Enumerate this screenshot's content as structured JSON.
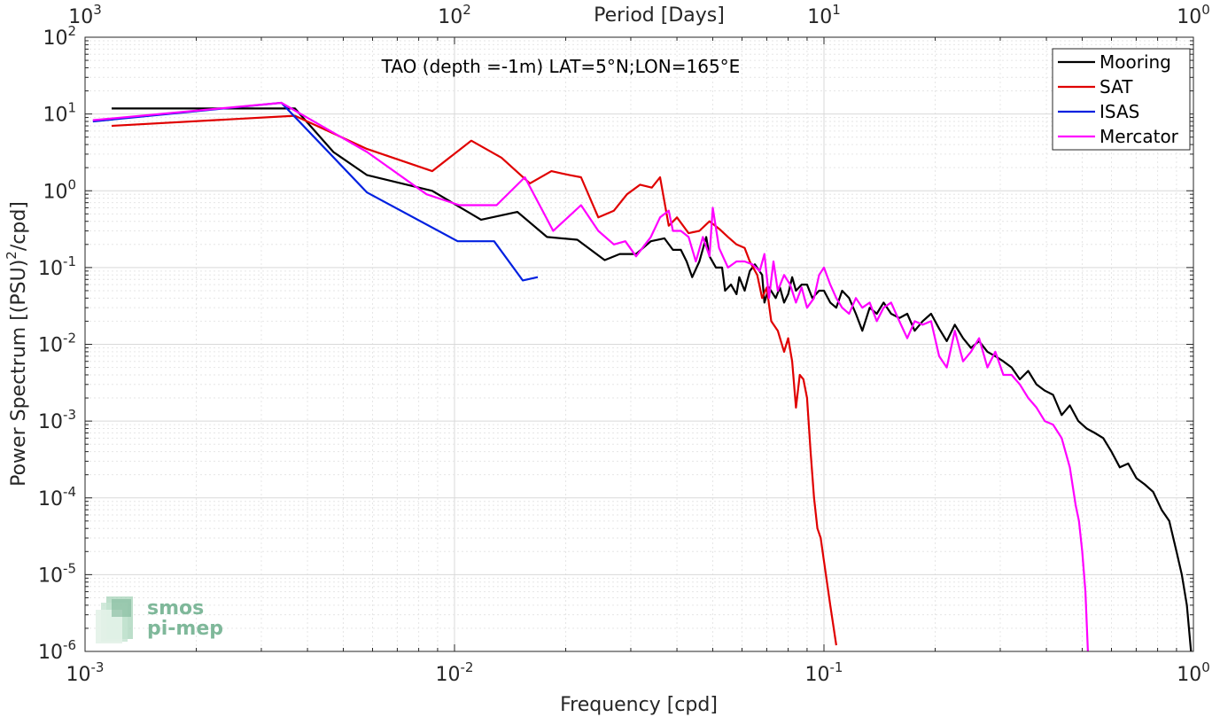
{
  "chart_data": {
    "type": "line",
    "title": "TAO (depth =-1m) LAT=5°N;LON=165°E",
    "xlabel": "Frequency [cpd]",
    "ylabel_main": "Power Spectrum [(PSU)",
    "ylabel_sup": "2",
    "ylabel_tail": "/cpd]",
    "top_xlabel": "Period [Days]",
    "xscale": "log",
    "yscale": "log",
    "xlim": [
      0.001,
      1
    ],
    "ylim": [
      1e-06,
      100
    ],
    "grid": true,
    "legend_position": "top-right",
    "x_ticks": [
      {
        "base": "10",
        "exp": "-3",
        "value": 0.001
      },
      {
        "base": "10",
        "exp": "-2",
        "value": 0.01
      },
      {
        "base": "10",
        "exp": "-1",
        "value": 0.1
      },
      {
        "base": "10",
        "exp": "0",
        "value": 1
      }
    ],
    "y_ticks": [
      {
        "base": "10",
        "exp": "-6",
        "value": 1e-06
      },
      {
        "base": "10",
        "exp": "-5",
        "value": 1e-05
      },
      {
        "base": "10",
        "exp": "-4",
        "value": 0.0001
      },
      {
        "base": "10",
        "exp": "-3",
        "value": 0.001
      },
      {
        "base": "10",
        "exp": "-2",
        "value": 0.01
      },
      {
        "base": "10",
        "exp": "-1",
        "value": 0.1
      },
      {
        "base": "10",
        "exp": "0",
        "value": 1
      },
      {
        "base": "10",
        "exp": "1",
        "value": 10
      },
      {
        "base": "10",
        "exp": "2",
        "value": 100
      }
    ],
    "top_ticks": [
      {
        "base": "10",
        "exp": "3",
        "value": 0.001
      },
      {
        "base": "10",
        "exp": "2",
        "value": 0.01
      },
      {
        "base": "10",
        "exp": "1",
        "value": 0.1
      },
      {
        "base": "10",
        "exp": "0",
        "value": 1
      }
    ],
    "series": [
      {
        "name": "Mooring",
        "color": "#000000",
        "points": [
          [
            0.00118,
            11.8
          ],
          [
            0.0037,
            11.8
          ],
          [
            0.0047,
            3.2
          ],
          [
            0.0058,
            1.6
          ],
          [
            0.0087,
            1.0
          ],
          [
            0.0118,
            0.42
          ],
          [
            0.0148,
            0.53
          ],
          [
            0.0178,
            0.25
          ],
          [
            0.0215,
            0.23
          ],
          [
            0.0255,
            0.125
          ],
          [
            0.028,
            0.15
          ],
          [
            0.031,
            0.15
          ],
          [
            0.034,
            0.22
          ],
          [
            0.037,
            0.24
          ],
          [
            0.039,
            0.17
          ],
          [
            0.041,
            0.17
          ],
          [
            0.0425,
            0.12
          ],
          [
            0.044,
            0.075
          ],
          [
            0.046,
            0.12
          ],
          [
            0.048,
            0.25
          ],
          [
            0.049,
            0.14
          ],
          [
            0.051,
            0.1
          ],
          [
            0.053,
            0.1
          ],
          [
            0.054,
            0.05
          ],
          [
            0.056,
            0.06
          ],
          [
            0.058,
            0.045
          ],
          [
            0.059,
            0.075
          ],
          [
            0.061,
            0.05
          ],
          [
            0.063,
            0.09
          ],
          [
            0.065,
            0.11
          ],
          [
            0.068,
            0.08
          ],
          [
            0.069,
            0.035
          ],
          [
            0.071,
            0.055
          ],
          [
            0.074,
            0.04
          ],
          [
            0.076,
            0.055
          ],
          [
            0.078,
            0.035
          ],
          [
            0.08,
            0.045
          ],
          [
            0.082,
            0.075
          ],
          [
            0.084,
            0.05
          ],
          [
            0.087,
            0.06
          ],
          [
            0.09,
            0.06
          ],
          [
            0.093,
            0.04
          ],
          [
            0.097,
            0.05
          ],
          [
            0.1,
            0.05
          ],
          [
            0.104,
            0.035
          ],
          [
            0.108,
            0.03
          ],
          [
            0.112,
            0.05
          ],
          [
            0.117,
            0.04
          ],
          [
            0.122,
            0.025
          ],
          [
            0.127,
            0.015
          ],
          [
            0.133,
            0.03
          ],
          [
            0.139,
            0.025
          ],
          [
            0.145,
            0.035
          ],
          [
            0.152,
            0.025
          ],
          [
            0.16,
            0.022
          ],
          [
            0.168,
            0.025
          ],
          [
            0.176,
            0.015
          ],
          [
            0.185,
            0.02
          ],
          [
            0.195,
            0.025
          ],
          [
            0.205,
            0.016
          ],
          [
            0.215,
            0.011
          ],
          [
            0.226,
            0.018
          ],
          [
            0.238,
            0.012
          ],
          [
            0.25,
            0.009
          ],
          [
            0.263,
            0.011
          ],
          [
            0.277,
            0.008
          ],
          [
            0.291,
            0.007
          ],
          [
            0.306,
            0.006
          ],
          [
            0.322,
            0.005
          ],
          [
            0.339,
            0.0035
          ],
          [
            0.357,
            0.0045
          ],
          [
            0.376,
            0.003
          ],
          [
            0.396,
            0.0025
          ],
          [
            0.417,
            0.0022
          ],
          [
            0.44,
            0.0012
          ],
          [
            0.463,
            0.0016
          ],
          [
            0.488,
            0.001
          ],
          [
            0.514,
            0.0008
          ],
          [
            0.541,
            0.0007
          ],
          [
            0.57,
            0.0006
          ],
          [
            0.6,
            0.0004
          ],
          [
            0.632,
            0.00025
          ],
          [
            0.666,
            0.00028
          ],
          [
            0.701,
            0.00018
          ],
          [
            0.738,
            0.00015
          ],
          [
            0.778,
            0.00012
          ],
          [
            0.82,
            7e-05
          ],
          [
            0.86,
            5e-05
          ],
          [
            0.9,
            2e-05
          ],
          [
            0.93,
            1e-05
          ],
          [
            0.96,
            4e-06
          ],
          [
            0.985,
            1e-06
          ]
        ]
      },
      {
        "name": "SAT",
        "color": "#e00000",
        "points": [
          [
            0.00118,
            7.0
          ],
          [
            0.0037,
            9.5
          ],
          [
            0.0058,
            3.5
          ],
          [
            0.0087,
            1.8
          ],
          [
            0.0111,
            4.5
          ],
          [
            0.0134,
            2.7
          ],
          [
            0.016,
            1.25
          ],
          [
            0.0183,
            1.8
          ],
          [
            0.0205,
            1.6
          ],
          [
            0.022,
            1.5
          ],
          [
            0.0245,
            0.45
          ],
          [
            0.027,
            0.55
          ],
          [
            0.0293,
            0.9
          ],
          [
            0.0318,
            1.2
          ],
          [
            0.0342,
            1.1
          ],
          [
            0.036,
            1.5
          ],
          [
            0.038,
            0.35
          ],
          [
            0.04,
            0.45
          ],
          [
            0.043,
            0.28
          ],
          [
            0.046,
            0.3
          ],
          [
            0.049,
            0.4
          ],
          [
            0.052,
            0.32
          ],
          [
            0.055,
            0.25
          ],
          [
            0.058,
            0.2
          ],
          [
            0.061,
            0.18
          ],
          [
            0.063,
            0.12
          ],
          [
            0.066,
            0.08
          ],
          [
            0.068,
            0.04
          ],
          [
            0.07,
            0.055
          ],
          [
            0.072,
            0.02
          ],
          [
            0.075,
            0.015
          ],
          [
            0.078,
            0.008
          ],
          [
            0.08,
            0.012
          ],
          [
            0.082,
            0.006
          ],
          [
            0.084,
            0.0015
          ],
          [
            0.086,
            0.004
          ],
          [
            0.088,
            0.0035
          ],
          [
            0.09,
            0.002
          ],
          [
            0.092,
            0.0004
          ],
          [
            0.094,
            0.0001
          ],
          [
            0.096,
            4e-05
          ],
          [
            0.098,
            3e-05
          ],
          [
            0.1,
            1.5e-05
          ],
          [
            0.104,
            4e-06
          ],
          [
            0.108,
            1.2e-06
          ]
        ]
      },
      {
        "name": "ISAS",
        "color": "#0020e0",
        "points": [
          [
            0.00105,
            8.0
          ],
          [
            0.0034,
            14.0
          ],
          [
            0.0058,
            0.95
          ],
          [
            0.0102,
            0.22
          ],
          [
            0.0128,
            0.22
          ],
          [
            0.0153,
            0.068
          ],
          [
            0.0168,
            0.075
          ]
        ]
      },
      {
        "name": "Mercator",
        "color": "#ff00ff",
        "points": [
          [
            0.00105,
            8.3
          ],
          [
            0.0034,
            14.0
          ],
          [
            0.0058,
            3.2
          ],
          [
            0.0084,
            0.9
          ],
          [
            0.0103,
            0.65
          ],
          [
            0.013,
            0.65
          ],
          [
            0.0155,
            1.5
          ],
          [
            0.0185,
            0.3
          ],
          [
            0.022,
            0.65
          ],
          [
            0.0245,
            0.3
          ],
          [
            0.027,
            0.2
          ],
          [
            0.029,
            0.22
          ],
          [
            0.031,
            0.14
          ],
          [
            0.034,
            0.25
          ],
          [
            0.036,
            0.45
          ],
          [
            0.038,
            0.55
          ],
          [
            0.039,
            0.3
          ],
          [
            0.041,
            0.3
          ],
          [
            0.043,
            0.25
          ],
          [
            0.045,
            0.12
          ],
          [
            0.047,
            0.25
          ],
          [
            0.049,
            0.14
          ],
          [
            0.05,
            0.6
          ],
          [
            0.052,
            0.18
          ],
          [
            0.055,
            0.1
          ],
          [
            0.058,
            0.12
          ],
          [
            0.061,
            0.12
          ],
          [
            0.064,
            0.11
          ],
          [
            0.067,
            0.09
          ],
          [
            0.069,
            0.15
          ],
          [
            0.071,
            0.04
          ],
          [
            0.073,
            0.12
          ],
          [
            0.075,
            0.05
          ],
          [
            0.078,
            0.08
          ],
          [
            0.081,
            0.06
          ],
          [
            0.084,
            0.035
          ],
          [
            0.087,
            0.055
          ],
          [
            0.09,
            0.03
          ],
          [
            0.094,
            0.04
          ],
          [
            0.097,
            0.08
          ],
          [
            0.1,
            0.1
          ],
          [
            0.104,
            0.06
          ],
          [
            0.108,
            0.04
          ],
          [
            0.112,
            0.03
          ],
          [
            0.117,
            0.025
          ],
          [
            0.122,
            0.04
          ],
          [
            0.127,
            0.03
          ],
          [
            0.133,
            0.035
          ],
          [
            0.139,
            0.02
          ],
          [
            0.145,
            0.03
          ],
          [
            0.152,
            0.035
          ],
          [
            0.16,
            0.02
          ],
          [
            0.168,
            0.012
          ],
          [
            0.176,
            0.02
          ],
          [
            0.185,
            0.018
          ],
          [
            0.195,
            0.02
          ],
          [
            0.205,
            0.007
          ],
          [
            0.215,
            0.005
          ],
          [
            0.226,
            0.015
          ],
          [
            0.238,
            0.006
          ],
          [
            0.25,
            0.008
          ],
          [
            0.263,
            0.012
          ],
          [
            0.277,
            0.005
          ],
          [
            0.291,
            0.008
          ],
          [
            0.306,
            0.004
          ],
          [
            0.322,
            0.004
          ],
          [
            0.339,
            0.003
          ],
          [
            0.357,
            0.002
          ],
          [
            0.376,
            0.0015
          ],
          [
            0.396,
            0.001
          ],
          [
            0.417,
            0.0009
          ],
          [
            0.44,
            0.0006
          ],
          [
            0.463,
            0.00025
          ],
          [
            0.48,
            8e-05
          ],
          [
            0.49,
            5e-05
          ],
          [
            0.5,
            2e-05
          ],
          [
            0.51,
            6e-06
          ],
          [
            0.518,
            1e-06
          ]
        ]
      }
    ]
  },
  "logo": {
    "line1": "smos",
    "line2": "pi-mep"
  }
}
